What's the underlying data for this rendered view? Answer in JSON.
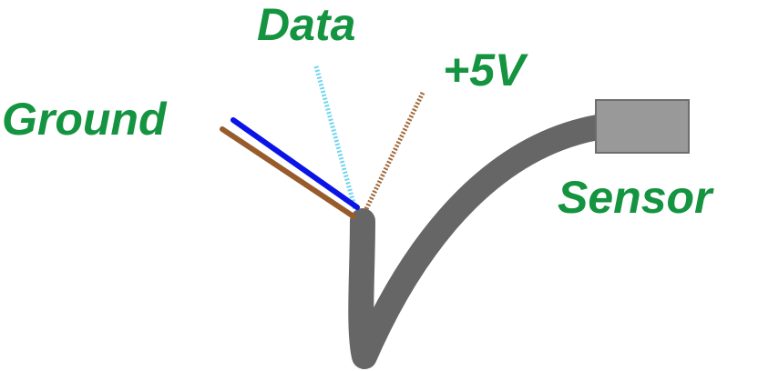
{
  "labels": {
    "data": "Data",
    "plus5v": "+5V",
    "ground": "Ground",
    "sensor": "Sensor"
  },
  "colors": {
    "label_text": "#149440",
    "cable": "#666666",
    "sensor_body": "#999999",
    "sensor_border": "#6e6e6e",
    "wire_ground": "#0a14e6",
    "wire_brown": "#985c2c",
    "wire_data": "#6fd6ee",
    "wire_plus5v": "#a06a3a"
  }
}
